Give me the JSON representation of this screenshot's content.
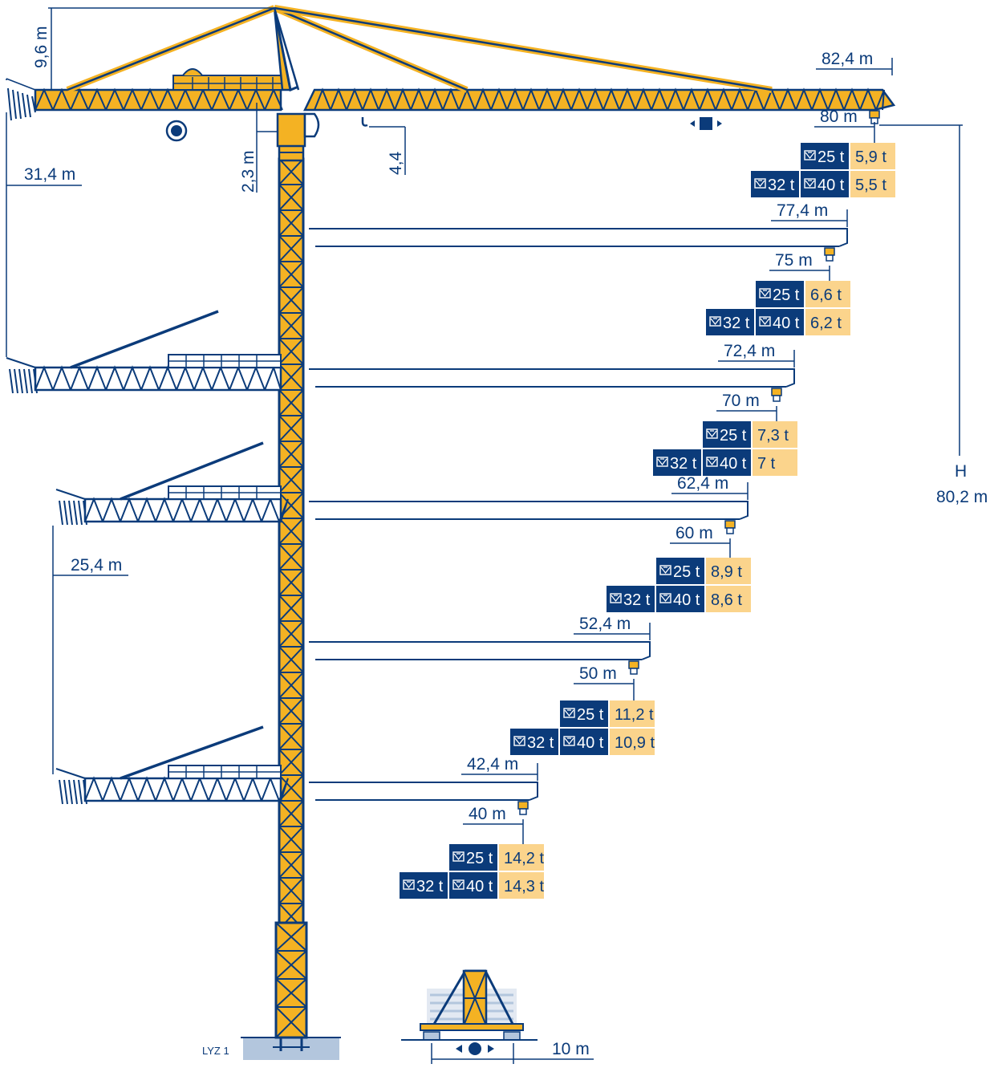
{
  "colors": {
    "navy": "#0b3b7a",
    "yellow": "#f4b223",
    "cream": "#fbd48c",
    "ground": "#b3c6dd",
    "text": "#0b3b7a"
  },
  "icons": {
    "slewing": "slewing-icon",
    "trolley": "trolley-icon",
    "hook": "hook-icon",
    "travel": "travel-icon",
    "hoist": "hoist-winch-icon"
  },
  "dimensions": {
    "apex_height": "9,6 m",
    "counter_jib_31": "31,4 m",
    "counter_jib_25": "25,4 m",
    "cab_height": "2,3 m",
    "hook_drop": "4,4",
    "height_label": "H",
    "height_value": "80,2 m",
    "track_gauge": "10 m",
    "base_code": "LYZ 1"
  },
  "jib_configs": [
    {
      "tip": "82,4 m",
      "hook": "80 m",
      "hoist_a": "25 t",
      "hoist_b": "32 t",
      "hoist_c": "40 t",
      "load_top": "5,9 t",
      "load_bottom": "5,5 t"
    },
    {
      "tip": "77,4 m",
      "hook": "75 m",
      "hoist_a": "25 t",
      "hoist_b": "32 t",
      "hoist_c": "40 t",
      "load_top": "6,6 t",
      "load_bottom": "6,2 t"
    },
    {
      "tip": "72,4 m",
      "hook": "70 m",
      "hoist_a": "25 t",
      "hoist_b": "32 t",
      "hoist_c": "40 t",
      "load_top": "7,3 t",
      "load_bottom": "7 t"
    },
    {
      "tip": "62,4 m",
      "hook": "60 m",
      "hoist_a": "25 t",
      "hoist_b": "32 t",
      "hoist_c": "40 t",
      "load_top": "8,9 t",
      "load_bottom": "8,6 t"
    },
    {
      "tip": "52,4 m",
      "hook": "50 m",
      "hoist_a": "25 t",
      "hoist_b": "32 t",
      "hoist_c": "40 t",
      "load_top": "11,2 t",
      "load_bottom": "10,9 t"
    },
    {
      "tip": "42,4 m",
      "hook": "40 m",
      "hoist_a": "25 t",
      "hoist_b": "32 t",
      "hoist_c": "40 t",
      "load_top": "14,2 t",
      "load_bottom": "14,3 t"
    }
  ]
}
